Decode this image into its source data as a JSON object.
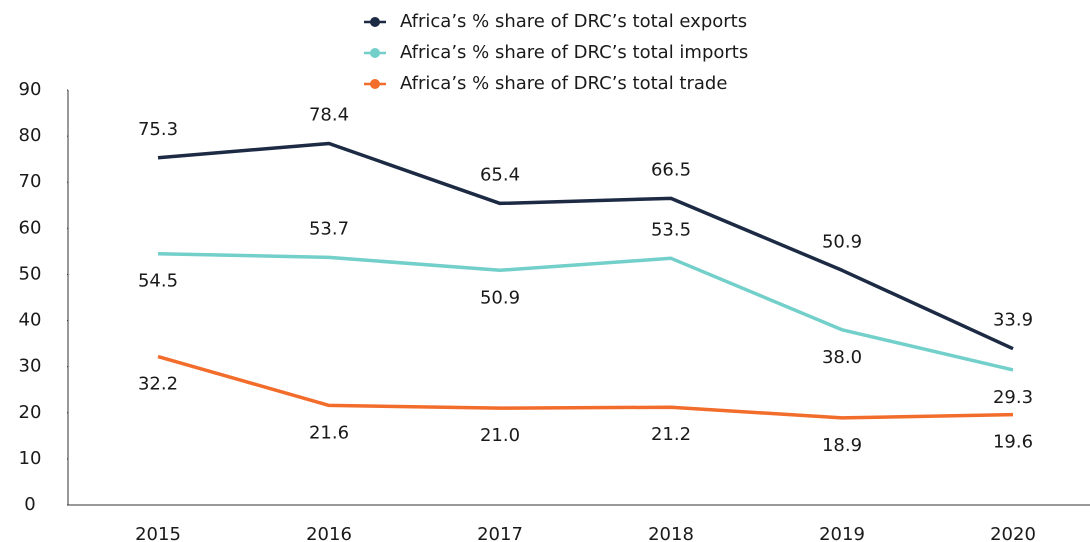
{
  "chart_data": {
    "type": "line",
    "categories": [
      "2015",
      "2016",
      "2017",
      "2018",
      "2019",
      "2020"
    ],
    "series": [
      {
        "name": "Africa’s % share of DRC’s total exports",
        "color": "#1c2a44",
        "values": [
          75.3,
          78.4,
          65.4,
          66.5,
          50.9,
          33.9
        ],
        "value_labels": [
          "75.3",
          "78.4",
          "65.4",
          "66.5",
          "50.9",
          "33.9"
        ]
      },
      {
        "name": "Africa’s % share of DRC’s total imports",
        "color": "#72cfc9",
        "values": [
          54.5,
          53.7,
          50.9,
          53.5,
          38.0,
          29.3
        ],
        "value_labels": [
          "54.5",
          "53.7",
          "50.9",
          "53.5",
          "38.0",
          "29.3"
        ]
      },
      {
        "name": "Africa’s % share of DRC’s total trade",
        "color": "#f26d2b",
        "values": [
          32.2,
          21.6,
          21.0,
          21.2,
          18.9,
          19.6
        ],
        "value_labels": [
          "32.2",
          "21.6",
          "21.0",
          "21.2",
          "18.9",
          "19.6"
        ]
      }
    ],
    "ylim": [
      0,
      90
    ],
    "yticks": [
      0,
      10,
      20,
      30,
      40,
      50,
      60,
      70,
      80,
      90
    ],
    "grid": false
  }
}
